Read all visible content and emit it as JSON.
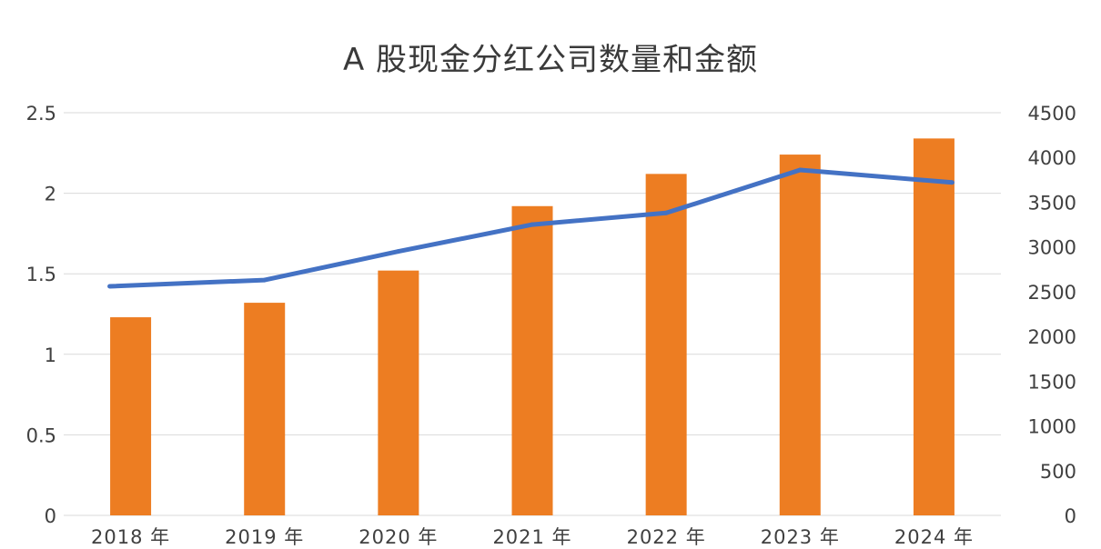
{
  "chart_data": {
    "type": "bar",
    "title": "A 股现金分红公司数量和金额",
    "categories": [
      "2018 年",
      "2019 年",
      "2020 年",
      "2021 年",
      "2022 年",
      "2023 年",
      "2024 年"
    ],
    "series": [
      {
        "type": "bar",
        "axis": "left",
        "color": "#ed7d22",
        "values": [
          1.23,
          1.32,
          1.52,
          1.92,
          2.12,
          2.24,
          2.34
        ]
      },
      {
        "type": "line",
        "axis": "right",
        "color": "#4472c4",
        "values": [
          2560,
          2630,
          2950,
          3250,
          3380,
          3860,
          3720
        ]
      }
    ],
    "y_left": {
      "ylim": [
        0,
        2.5
      ],
      "ticks": [
        0,
        0.5,
        1,
        1.5,
        2,
        2.5
      ],
      "tick_labels": [
        "0",
        "0.5",
        "1",
        "1.5",
        "2",
        "2.5"
      ]
    },
    "y_right": {
      "ylim": [
        0,
        4500
      ],
      "ticks": [
        0,
        500,
        1000,
        1500,
        2000,
        2500,
        3000,
        3500,
        4000,
        4500
      ],
      "tick_labels": [
        "0",
        "500",
        "1000",
        "1500",
        "2000",
        "2500",
        "3000",
        "3500",
        "4000",
        "4500"
      ]
    },
    "grid": true,
    "legend": "none",
    "colors": {
      "bar": "#ed7d22",
      "line": "#4472c4",
      "grid": "#d9d9d9",
      "text": "#404040"
    }
  }
}
